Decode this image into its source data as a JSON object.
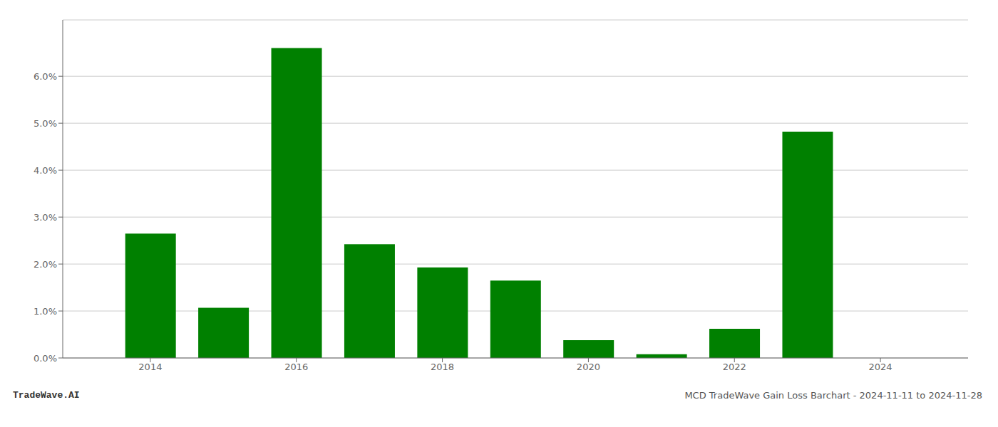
{
  "chart_data": {
    "type": "bar",
    "title": "MCD TradeWave Gain Loss Barchart - 2024-11-11 to 2024-11-28",
    "annotations": [
      "TradeWave.AI"
    ],
    "x": [
      2014,
      2015,
      2016,
      2017,
      2018,
      2019,
      2020,
      2021,
      2022,
      2023,
      2024
    ],
    "values": [
      0.0265,
      0.0107,
      0.066,
      0.0242,
      0.0193,
      0.0165,
      0.0038,
      0.0008,
      0.0062,
      0.0482,
      0.0
    ],
    "color": "#008000",
    "xlim": [
      2012.8,
      2025.2
    ],
    "xticks": [
      2014,
      2016,
      2018,
      2020,
      2022,
      2024
    ],
    "ylim": [
      0,
      0.072
    ],
    "yticks": [
      {
        "value": 0.0,
        "label": "0.0%"
      },
      {
        "value": 0.01,
        "label": "1.0%"
      },
      {
        "value": 0.02,
        "label": "2.0%"
      },
      {
        "value": 0.03,
        "label": "3.0%"
      },
      {
        "value": 0.04,
        "label": "4.0%"
      },
      {
        "value": 0.05,
        "label": "5.0%"
      },
      {
        "value": 0.06,
        "label": "6.0%"
      }
    ],
    "grid": true
  }
}
